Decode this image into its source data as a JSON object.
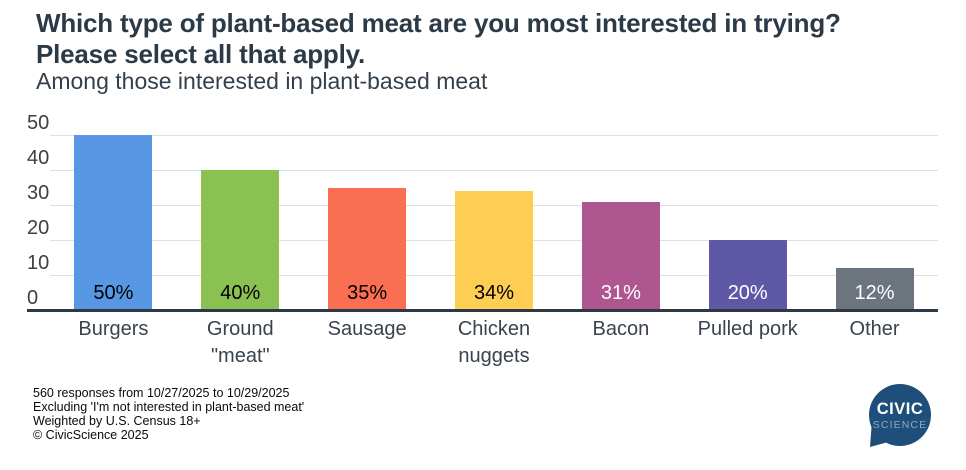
{
  "header": {
    "title_lines": [
      "Which type of plant-based meat are you most interested in trying?",
      "Please select all that apply."
    ],
    "subtitle": "Among those interested in plant-based meat"
  },
  "chart_data": {
    "type": "bar",
    "categories": [
      "Burgers",
      "Ground \"meat\"",
      "Sausage",
      "Chicken nuggets",
      "Bacon",
      "Pulled pork",
      "Other"
    ],
    "values": [
      50,
      40,
      35,
      34,
      31,
      20,
      12
    ],
    "value_labels": [
      "50%",
      "40%",
      "35%",
      "34%",
      "31%",
      "20%",
      "12%"
    ],
    "bar_colors": [
      "#5897E4",
      "#8BC152",
      "#FA6E51",
      "#FECD53",
      "#AF5590",
      "#5E58A6",
      "#6C747E"
    ],
    "value_label_colors": [
      "#000000",
      "#000000",
      "#000000",
      "#000000",
      "#FFFFFF",
      "#FFFFFF",
      "#FFFFFF"
    ],
    "title": "Which type of plant-based meat are you most interested in trying? Please select all that apply.",
    "subtitle": "Among those interested in plant-based meat",
    "xlabel": "",
    "ylabel": "",
    "ylim": [
      0,
      50
    ],
    "y_ticks": [
      0,
      10,
      20,
      30,
      40,
      50
    ],
    "grid": true,
    "gridline_color": "#e0e0e0",
    "axis_line_color": "#2b3947",
    "legend": "none"
  },
  "footer": {
    "lines": [
      "560 responses from 10/27/2025 to 10/29/2025",
      "Excluding 'I'm not interested in plant-based meat'",
      "Weighted by U.S. Census 18+",
      "© CivicScience 2025"
    ]
  },
  "logo": {
    "line1": "CIVIC",
    "line2": "SCIENCE",
    "bg_color": "#1E4F7A",
    "line1_color": "#FFFFFF",
    "line2_color": "#8FA9BE"
  }
}
